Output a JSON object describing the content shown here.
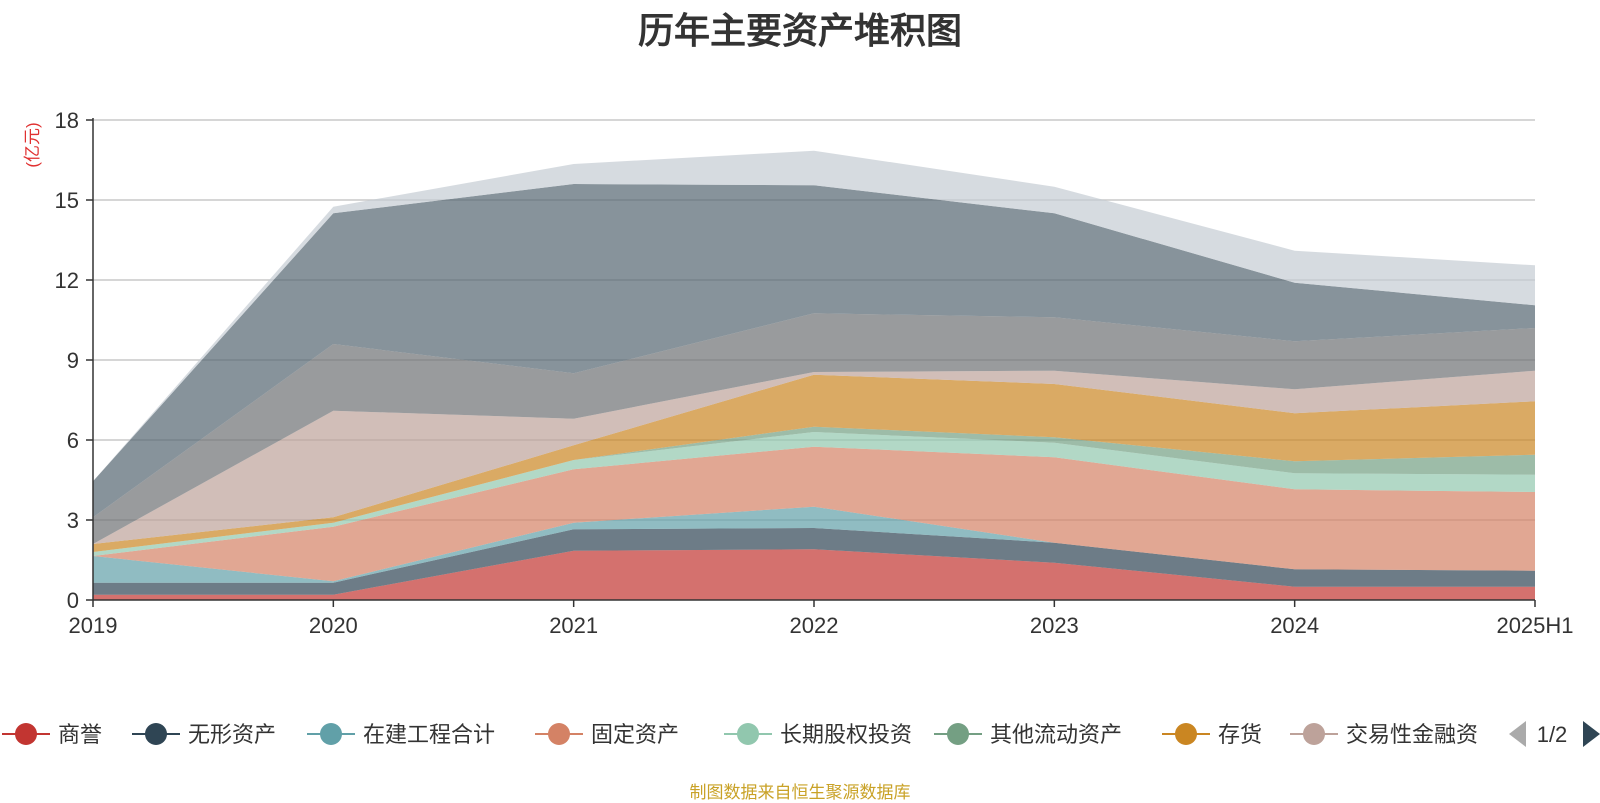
{
  "chart_data": {
    "type": "area",
    "stacked": true,
    "title": "历年主要资产堆积图",
    "ylabel": "(亿元)",
    "xlabel": "",
    "categories": [
      "2019",
      "2020",
      "2021",
      "2022",
      "2023",
      "2024",
      "2025H1"
    ],
    "ylim": [
      0,
      18
    ],
    "yticks": [
      0,
      3,
      6,
      9,
      12,
      15,
      18
    ],
    "grid": true,
    "series": [
      {
        "name": "商誉",
        "color": "#c23531",
        "values": [
          0.2,
          0.2,
          1.85,
          1.9,
          1.4,
          0.5,
          0.5
        ]
      },
      {
        "name": "无形资产",
        "color": "#2f4554",
        "values": [
          0.45,
          0.45,
          0.8,
          0.8,
          0.75,
          0.65,
          0.6
        ]
      },
      {
        "name": "在建工程合计",
        "color": "#61a0a8",
        "values": [
          1.0,
          0.05,
          0.25,
          0.8,
          0.0,
          0.0,
          0.0
        ]
      },
      {
        "name": "固定资产",
        "color": "#d48265",
        "values": [
          0.0,
          2.05,
          2.0,
          2.25,
          3.2,
          3.0,
          2.95
        ]
      },
      {
        "name": "长期股权投资",
        "color": "#91c7ae",
        "values": [
          0.15,
          0.15,
          0.35,
          0.55,
          0.55,
          0.6,
          0.65
        ]
      },
      {
        "name": "其他流动资产",
        "color": "#749f83",
        "values": [
          0.0,
          0.0,
          0.0,
          0.2,
          0.2,
          0.45,
          0.75
        ]
      },
      {
        "name": "存货",
        "color": "#ca8622",
        "values": [
          0.3,
          0.2,
          0.55,
          1.95,
          2.0,
          1.8,
          2.0
        ]
      },
      {
        "name": "交易性金融资产",
        "color": "#bda29a",
        "values": [
          0.0,
          4.0,
          1.0,
          0.1,
          0.5,
          0.9,
          1.15
        ]
      },
      {
        "name": "",
        "color": "#6e7074",
        "values": [
          1.0,
          2.5,
          1.7,
          2.2,
          2.0,
          1.8,
          1.6
        ]
      },
      {
        "name": "",
        "color": "#546570",
        "values": [
          1.35,
          4.9,
          7.1,
          4.8,
          3.9,
          2.2,
          0.85
        ]
      },
      {
        "name": "",
        "color": "#c4ccd3",
        "values": [
          0.0,
          0.25,
          0.75,
          1.3,
          1.0,
          1.2,
          1.5
        ]
      }
    ]
  },
  "legend": {
    "items": [
      {
        "label": "商誉",
        "color": "#c23531"
      },
      {
        "label": "无形资产",
        "color": "#2f4554"
      },
      {
        "label": "在建工程合计",
        "color": "#61a0a8"
      },
      {
        "label": "固定资产",
        "color": "#d48265"
      },
      {
        "label": "长期股权投资",
        "color": "#91c7ae"
      },
      {
        "label": "其他流动资产",
        "color": "#749f83"
      },
      {
        "label": "存货",
        "color": "#ca8622"
      },
      {
        "label": "交易性金融资",
        "color": "#bda29a"
      }
    ],
    "page": "1/2"
  },
  "source_note": "制图数据来自恒生聚源数据库"
}
